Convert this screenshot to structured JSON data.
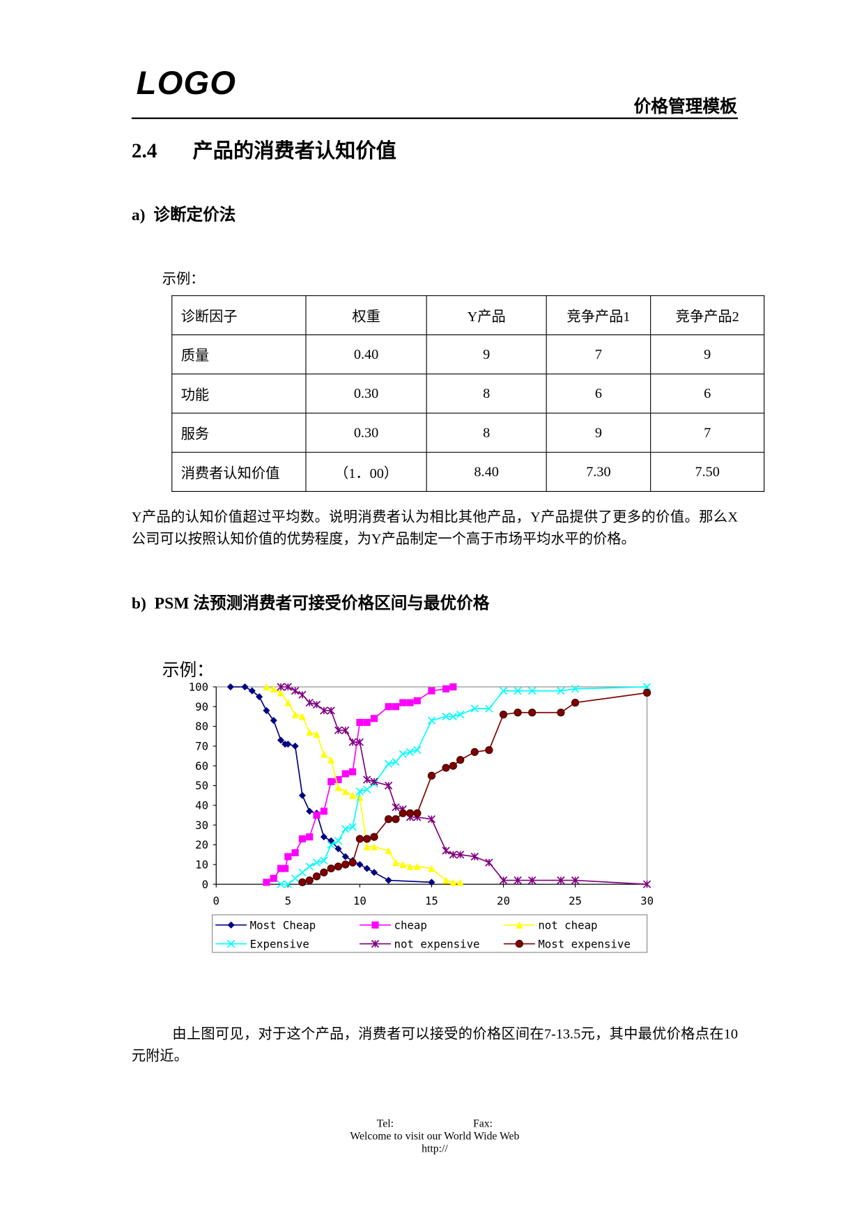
{
  "header": {
    "logo": "LOGO",
    "title": "价格管理模板"
  },
  "section": {
    "number": "2.4",
    "title": "产品的消费者认知价值"
  },
  "part_a": {
    "heading": "a)  诊断定价法",
    "example_label": "示例：",
    "table": {
      "header": [
        "诊断因子",
        "权重",
        "Y产品",
        "竞争产品1",
        "竞争产品2"
      ],
      "rows": [
        [
          "质量",
          "0.40",
          "9",
          "7",
          "9"
        ],
        [
          "功能",
          "0.30",
          "8",
          "6",
          "6"
        ],
        [
          "服务",
          "0.30",
          "8",
          "9",
          "7"
        ],
        [
          "消费者认知价值",
          "（1．00）",
          "8.40",
          "7.30",
          "7.50"
        ]
      ]
    },
    "paragraph": "Y产品的认知价值超过平均数。说明消费者认为相比其他产品，Y产品提供了更多的价值。那么X公司可以按照认知价值的优势程度，为Y产品制定一个高于市场平均水平的价格。"
  },
  "part_b": {
    "heading": "b)  PSM 法预测消费者可接受价格区间与最优价格",
    "example_label": "示例：",
    "paragraph": "由上图可见，对于这个产品，消费者可以接受的价格区间在7-13.5元，其中最优价格点在10元附近。"
  },
  "chart_data": {
    "type": "line",
    "xlim": [
      0,
      30
    ],
    "xticks": [
      0,
      5,
      10,
      15,
      20,
      25,
      30
    ],
    "ylim": [
      0,
      100
    ],
    "yticks": [
      0,
      10,
      20,
      30,
      40,
      50,
      60,
      70,
      80,
      90,
      100
    ],
    "grid": false,
    "legend": "bottom",
    "series": [
      {
        "name": "Most Cheap",
        "color": "#000080",
        "marker": "diamond",
        "x": [
          1,
          2,
          2.5,
          3,
          3.5,
          4,
          4.5,
          4.8,
          5,
          5.5,
          6,
          6.5,
          7,
          7.5,
          8,
          8.5,
          9,
          9.5,
          10,
          10.5,
          11,
          12,
          15
        ],
        "values": [
          100,
          100,
          98,
          95,
          88,
          83,
          73,
          71,
          71,
          70,
          45,
          37,
          36,
          24,
          22,
          18,
          14,
          12,
          10,
          8,
          6,
          2,
          1
        ]
      },
      {
        "name": "cheap",
        "color": "#ff00ff",
        "marker": "square",
        "x": [
          3.5,
          4,
          4.5,
          4.8,
          5,
          5.5,
          6,
          6.5,
          7,
          7.5,
          8,
          8.5,
          9,
          9.5,
          10,
          10.5,
          11,
          12,
          12.5,
          13,
          13.5,
          14,
          15,
          16,
          16.5
        ],
        "values": [
          1,
          3,
          8,
          8,
          14,
          16,
          23,
          24,
          35,
          37,
          52,
          53,
          56,
          57,
          82,
          82,
          84,
          90,
          90,
          92,
          92,
          93,
          98,
          99,
          100
        ]
      },
      {
        "name": "not cheap",
        "color": "#ffff00",
        "marker": "triangle",
        "x": [
          3.5,
          4,
          4.5,
          5,
          5.5,
          6,
          6.5,
          7,
          7.5,
          8,
          8.5,
          9,
          9.5,
          10,
          10.5,
          11,
          12,
          12.5,
          13,
          13.5,
          14,
          15,
          16,
          16.5,
          17
        ],
        "values": [
          100,
          99,
          97,
          92,
          86,
          85,
          77,
          76,
          66,
          63,
          49,
          47,
          45,
          44,
          19,
          19,
          17,
          11,
          10,
          9,
          9,
          8,
          2,
          1,
          1
        ]
      },
      {
        "name": "Expensive",
        "color": "#00ffff",
        "marker": "x",
        "x": [
          4.5,
          5,
          5.5,
          6,
          6.5,
          7,
          7.5,
          8,
          8.5,
          9,
          9.5,
          10,
          10.5,
          11,
          12,
          12.5,
          13,
          13.5,
          14,
          15,
          16,
          16.5,
          17,
          18,
          19,
          20,
          21,
          22,
          24,
          25,
          30
        ],
        "values": [
          0,
          0,
          3,
          6,
          9,
          11,
          12,
          20,
          22,
          28,
          29,
          47,
          48,
          51,
          61,
          62,
          66,
          67,
          68,
          83,
          85,
          85,
          86,
          89,
          89,
          98,
          98,
          98,
          98,
          99,
          100
        ]
      },
      {
        "name": "not expensive",
        "color": "#800080",
        "marker": "star",
        "x": [
          4.5,
          5,
          5.5,
          6,
          6.5,
          7,
          7.5,
          8,
          8.5,
          9,
          9.5,
          10,
          10.5,
          11,
          12,
          12.5,
          13,
          13.5,
          14,
          15,
          16,
          16.5,
          17,
          18,
          19,
          20,
          21,
          22,
          24,
          25,
          30
        ],
        "values": [
          100,
          100,
          98,
          96,
          92,
          91,
          88,
          88,
          78,
          78,
          72,
          72,
          53,
          52,
          50,
          39,
          38,
          34,
          34,
          33,
          17,
          15,
          15,
          14,
          11,
          2,
          2,
          2,
          2,
          2,
          0
        ]
      },
      {
        "name": "Most expensive",
        "color": "#800000",
        "marker": "circle",
        "x": [
          6,
          6.5,
          7,
          7.5,
          8,
          8.5,
          9,
          9.5,
          10,
          10.5,
          11,
          12,
          12.5,
          13,
          13.5,
          14,
          15,
          16,
          16.5,
          17,
          18,
          19,
          20,
          21,
          22,
          24,
          25,
          30
        ],
        "values": [
          1,
          2,
          4,
          6,
          8,
          9,
          10,
          11,
          23,
          23,
          24,
          33,
          33,
          36,
          36,
          36,
          55,
          59,
          60,
          63,
          67,
          68,
          86,
          87,
          87,
          87,
          92,
          97
        ]
      }
    ]
  },
  "footer": {
    "tel": "Tel:",
    "fax": "Fax:",
    "welcome": "Welcome to visit our World Wide Web",
    "url": "http://"
  }
}
